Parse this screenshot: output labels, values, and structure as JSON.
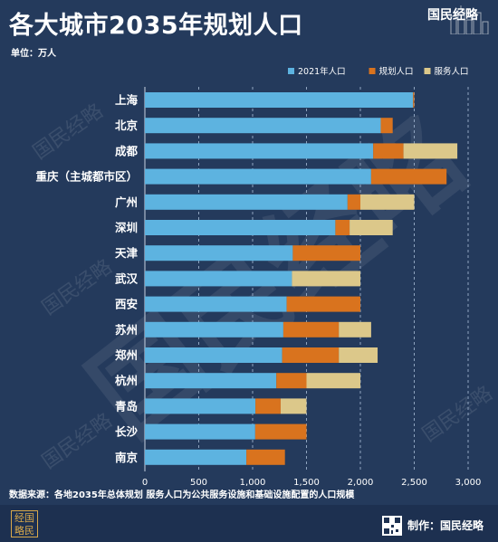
{
  "header": {
    "title": "各大城市2035年规划人口",
    "unit": "单位：万人",
    "brand": "国民经略"
  },
  "footer": {
    "source": "数据来源：各地2035年总体规划  服务人口为公共服务设施和基础设施配置的人口规模",
    "credit": "制作：国民经略",
    "logo_text": "经国略民"
  },
  "watermark": "国民经略",
  "colors": {
    "background": "#243a5c",
    "footer_bg": "#1d3050",
    "series_2021": "#5db3e0",
    "series_plan": "#d9731e",
    "series_service": "#dcc88a",
    "grid": "#8fa4bf"
  },
  "chart_data": {
    "type": "bar",
    "orientation": "horizontal",
    "stacked": true,
    "categories": [
      "上海",
      "北京",
      "成都",
      "重庆（主城都市区）",
      "广州",
      "深圳",
      "天津",
      "武汉",
      "西安",
      "苏州",
      "郑州",
      "杭州",
      "青岛",
      "长沙",
      "南京"
    ],
    "series": [
      {
        "name": "2021年人口",
        "values": [
          2489,
          2189,
          2119,
          2100,
          1881,
          1768,
          1373,
          1365,
          1316,
          1285,
          1274,
          1220,
          1026,
          1024,
          942
        ]
      },
      {
        "name": "规划人口",
        "values": [
          11,
          111,
          281,
          700,
          119,
          132,
          627,
          0,
          684,
          515,
          526,
          280,
          234,
          476,
          358
        ]
      },
      {
        "name": "服务人口",
        "values": [
          0,
          0,
          500,
          0,
          500,
          400,
          0,
          635,
          0,
          300,
          360,
          500,
          240,
          0,
          0
        ]
      }
    ],
    "x_ticks": [
      "0",
      "500",
      "1,000",
      "1,500",
      "2,000",
      "2,500",
      "3,000"
    ],
    "xlim": [
      0,
      3000
    ],
    "grid": true,
    "legend_position": "top-right"
  }
}
